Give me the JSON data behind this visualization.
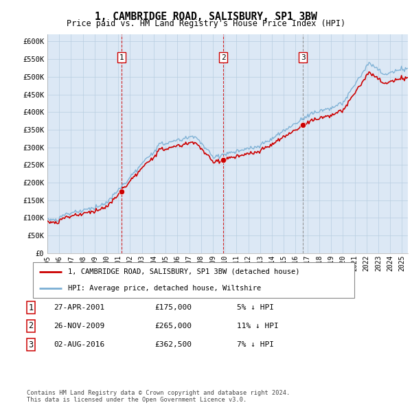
{
  "title": "1, CAMBRIDGE ROAD, SALISBURY, SP1 3BW",
  "subtitle": "Price paid vs. HM Land Registry's House Price Index (HPI)",
  "plot_bg_color": "#dce8f5",
  "ylim": [
    0,
    620000
  ],
  "yticks": [
    0,
    50000,
    100000,
    150000,
    200000,
    250000,
    300000,
    350000,
    400000,
    450000,
    500000,
    550000,
    600000
  ],
  "ytick_labels": [
    "£0",
    "£50K",
    "£100K",
    "£150K",
    "£200K",
    "£250K",
    "£300K",
    "£350K",
    "£400K",
    "£450K",
    "£500K",
    "£550K",
    "£600K"
  ],
  "sale_prices": [
    175000,
    265000,
    362500
  ],
  "sale_labels": [
    "1",
    "2",
    "3"
  ],
  "sale_pct": [
    "5%",
    "11%",
    "7%"
  ],
  "sale_date_labels": [
    "27-APR-2001",
    "26-NOV-2009",
    "02-AUG-2016"
  ],
  "legend_property": "1, CAMBRIDGE ROAD, SALISBURY, SP1 3BW (detached house)",
  "legend_hpi": "HPI: Average price, detached house, Wiltshire",
  "footer": "Contains HM Land Registry data © Crown copyright and database right 2024.\nThis data is licensed under the Open Government Licence v3.0.",
  "hpi_color": "#7bafd4",
  "sale_line_color": "#cc0000",
  "sale_dot_color": "#cc0000",
  "vline_color_red": "#cc0000",
  "vline_color_gray": "#888888",
  "grid_color": "#b8cde0",
  "x_start_year": 1995,
  "x_end_year": 2025
}
